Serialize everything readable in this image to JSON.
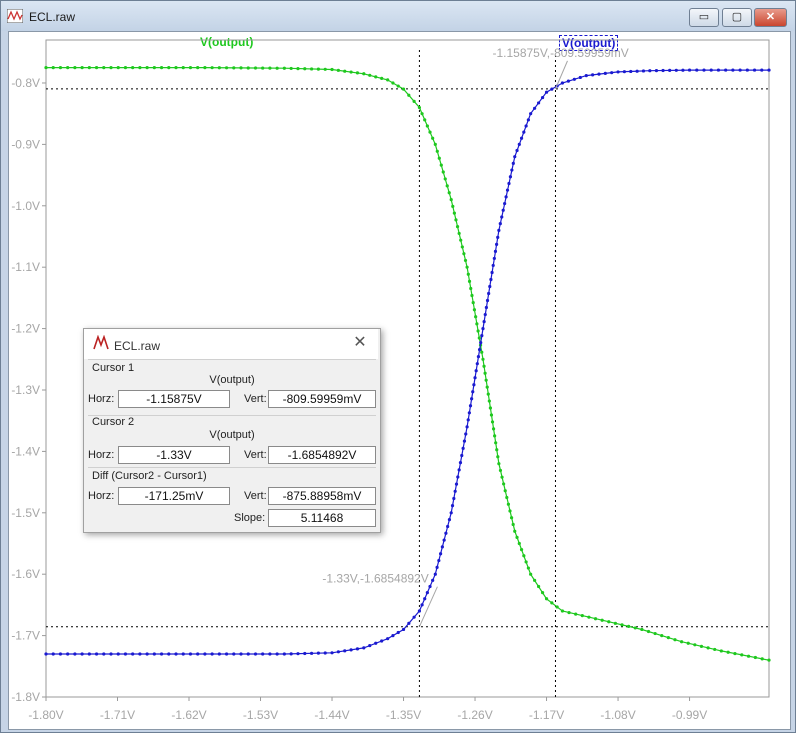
{
  "window": {
    "title": "ECL.raw",
    "buttons": {
      "minimize": "▭",
      "maximize": "▢",
      "close": "✕"
    }
  },
  "traces": {
    "left_label": "V(output)",
    "right_label": "V(output)",
    "green_color": "#1ec81e",
    "blue_color": "#1a1ad0"
  },
  "chart_data": {
    "type": "line",
    "xlabel": "",
    "ylabel": "",
    "xlim": [
      -1.8,
      -0.89
    ],
    "ylim": [
      -1.8,
      -0.73
    ],
    "x_ticks": [
      "-1.80V",
      "-1.71V",
      "-1.62V",
      "-1.53V",
      "-1.44V",
      "-1.35V",
      "-1.26V",
      "-1.17V",
      "-1.08V",
      "-0.99V"
    ],
    "y_ticks": [
      "-0.8V",
      "-0.9V",
      "-1.0V",
      "-1.1V",
      "-1.2V",
      "-1.3V",
      "-1.4V",
      "-1.5V",
      "-1.6V",
      "-1.7V",
      "-1.8V"
    ],
    "series": [
      {
        "name": "V(output)",
        "color": "#1ec81e",
        "x": [
          -1.8,
          -1.7,
          -1.6,
          -1.5,
          -1.44,
          -1.4,
          -1.37,
          -1.35,
          -1.33,
          -1.31,
          -1.29,
          -1.27,
          -1.25,
          -1.23,
          -1.21,
          -1.19,
          -1.17,
          -1.15,
          -1.1,
          -1.05,
          -1.0,
          -0.95,
          -0.89
        ],
        "y": [
          -0.775,
          -0.775,
          -0.775,
          -0.776,
          -0.778,
          -0.785,
          -0.795,
          -0.81,
          -0.84,
          -0.9,
          -0.99,
          -1.1,
          -1.25,
          -1.42,
          -1.53,
          -1.6,
          -1.64,
          -1.66,
          -1.675,
          -1.69,
          -1.71,
          -1.725,
          -1.74
        ]
      },
      {
        "name": "V(output)",
        "color": "#1a1ad0",
        "x": [
          -1.8,
          -1.7,
          -1.6,
          -1.5,
          -1.44,
          -1.4,
          -1.37,
          -1.35,
          -1.33,
          -1.31,
          -1.29,
          -1.27,
          -1.25,
          -1.23,
          -1.21,
          -1.19,
          -1.17,
          -1.15,
          -1.12,
          -1.08,
          -1.04,
          -0.99,
          -0.89
        ],
        "y": [
          -1.73,
          -1.73,
          -1.73,
          -1.73,
          -1.728,
          -1.72,
          -1.705,
          -1.69,
          -1.66,
          -1.6,
          -1.5,
          -1.36,
          -1.2,
          -1.04,
          -0.92,
          -0.85,
          -0.815,
          -0.8,
          -0.788,
          -0.782,
          -0.78,
          -0.779,
          -0.779
        ]
      }
    ],
    "cursors": [
      {
        "x": -1.15875,
        "y": -0.80959959
      },
      {
        "x": -1.33,
        "y": -1.6854892
      }
    ],
    "cursor_annotations": [
      "-1.15875V,-809.59959mV",
      "-1.33V,-1.6854892V"
    ]
  },
  "cursor_dialog": {
    "title": "ECL.raw",
    "close": "✕",
    "cursor1": {
      "header": "Cursor 1",
      "trace": "V(output)",
      "horz_label": "Horz:",
      "horz": "-1.15875V",
      "vert_label": "Vert:",
      "vert": "-809.59959mV"
    },
    "cursor2": {
      "header": "Cursor 2",
      "trace": "V(output)",
      "horz_label": "Horz:",
      "horz": "-1.33V",
      "vert_label": "Vert:",
      "vert": "-1.6854892V"
    },
    "diff": {
      "header": "Diff (Cursor2 - Cursor1)",
      "horz_label": "Horz:",
      "horz": "-171.25mV",
      "vert_label": "Vert:",
      "vert": "-875.88958mV",
      "slope_label": "Slope:",
      "slope": "5.11468"
    }
  }
}
